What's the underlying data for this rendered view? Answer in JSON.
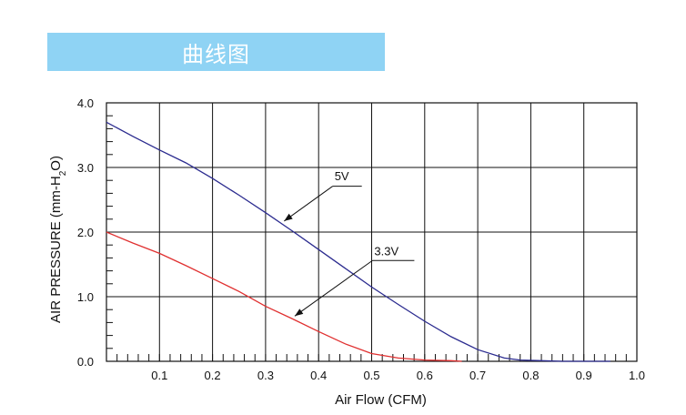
{
  "banner": {
    "title": "曲线图"
  },
  "chart_data": {
    "type": "line",
    "title": "",
    "xlabel": "Air Flow (CFM)",
    "ylabel_main": "AIR PRESSURE (mm-H",
    "ylabel_sub": "2",
    "ylabel_tail": "O)",
    "xlim": [
      0,
      1.0
    ],
    "ylim": [
      0,
      4.0
    ],
    "grid": true,
    "x_ticks": [
      0.1,
      0.2,
      0.3,
      0.4,
      0.5,
      0.6,
      0.7,
      0.8,
      0.9,
      1.0
    ],
    "x_tick_labels": [
      "0.1",
      "0.2",
      "0.3",
      "0.4",
      "0.5",
      "0.6",
      "0.7",
      "0.8",
      "0.9",
      "1.0"
    ],
    "y_ticks": [
      0,
      1,
      2,
      3,
      4
    ],
    "y_tick_labels": [
      "0.0",
      "1.0",
      "2.0",
      "3.0",
      "4.0"
    ],
    "series": [
      {
        "name": "5V",
        "color": "#2b2b8f",
        "x": [
          0.0,
          0.05,
          0.1,
          0.15,
          0.2,
          0.25,
          0.3,
          0.35,
          0.4,
          0.45,
          0.5,
          0.55,
          0.6,
          0.65,
          0.7,
          0.75,
          0.78,
          0.82,
          0.86,
          0.9,
          0.95
        ],
        "y": [
          3.7,
          3.48,
          3.27,
          3.07,
          2.83,
          2.57,
          2.3,
          2.02,
          1.73,
          1.44,
          1.15,
          0.88,
          0.62,
          0.38,
          0.18,
          0.05,
          0.02,
          0.01,
          0.0,
          0.0,
          0.0
        ]
      },
      {
        "name": "3.3V",
        "color": "#e03030",
        "x": [
          0.0,
          0.05,
          0.1,
          0.15,
          0.2,
          0.25,
          0.3,
          0.35,
          0.4,
          0.45,
          0.5,
          0.55,
          0.6,
          0.65,
          0.67
        ],
        "y": [
          2.0,
          1.83,
          1.67,
          1.48,
          1.28,
          1.08,
          0.85,
          0.66,
          0.46,
          0.27,
          0.12,
          0.05,
          0.02,
          0.01,
          0.0
        ]
      }
    ],
    "annotations": [
      {
        "label": "5V",
        "series": 0
      },
      {
        "label": "3.3V",
        "series": 1
      }
    ]
  }
}
